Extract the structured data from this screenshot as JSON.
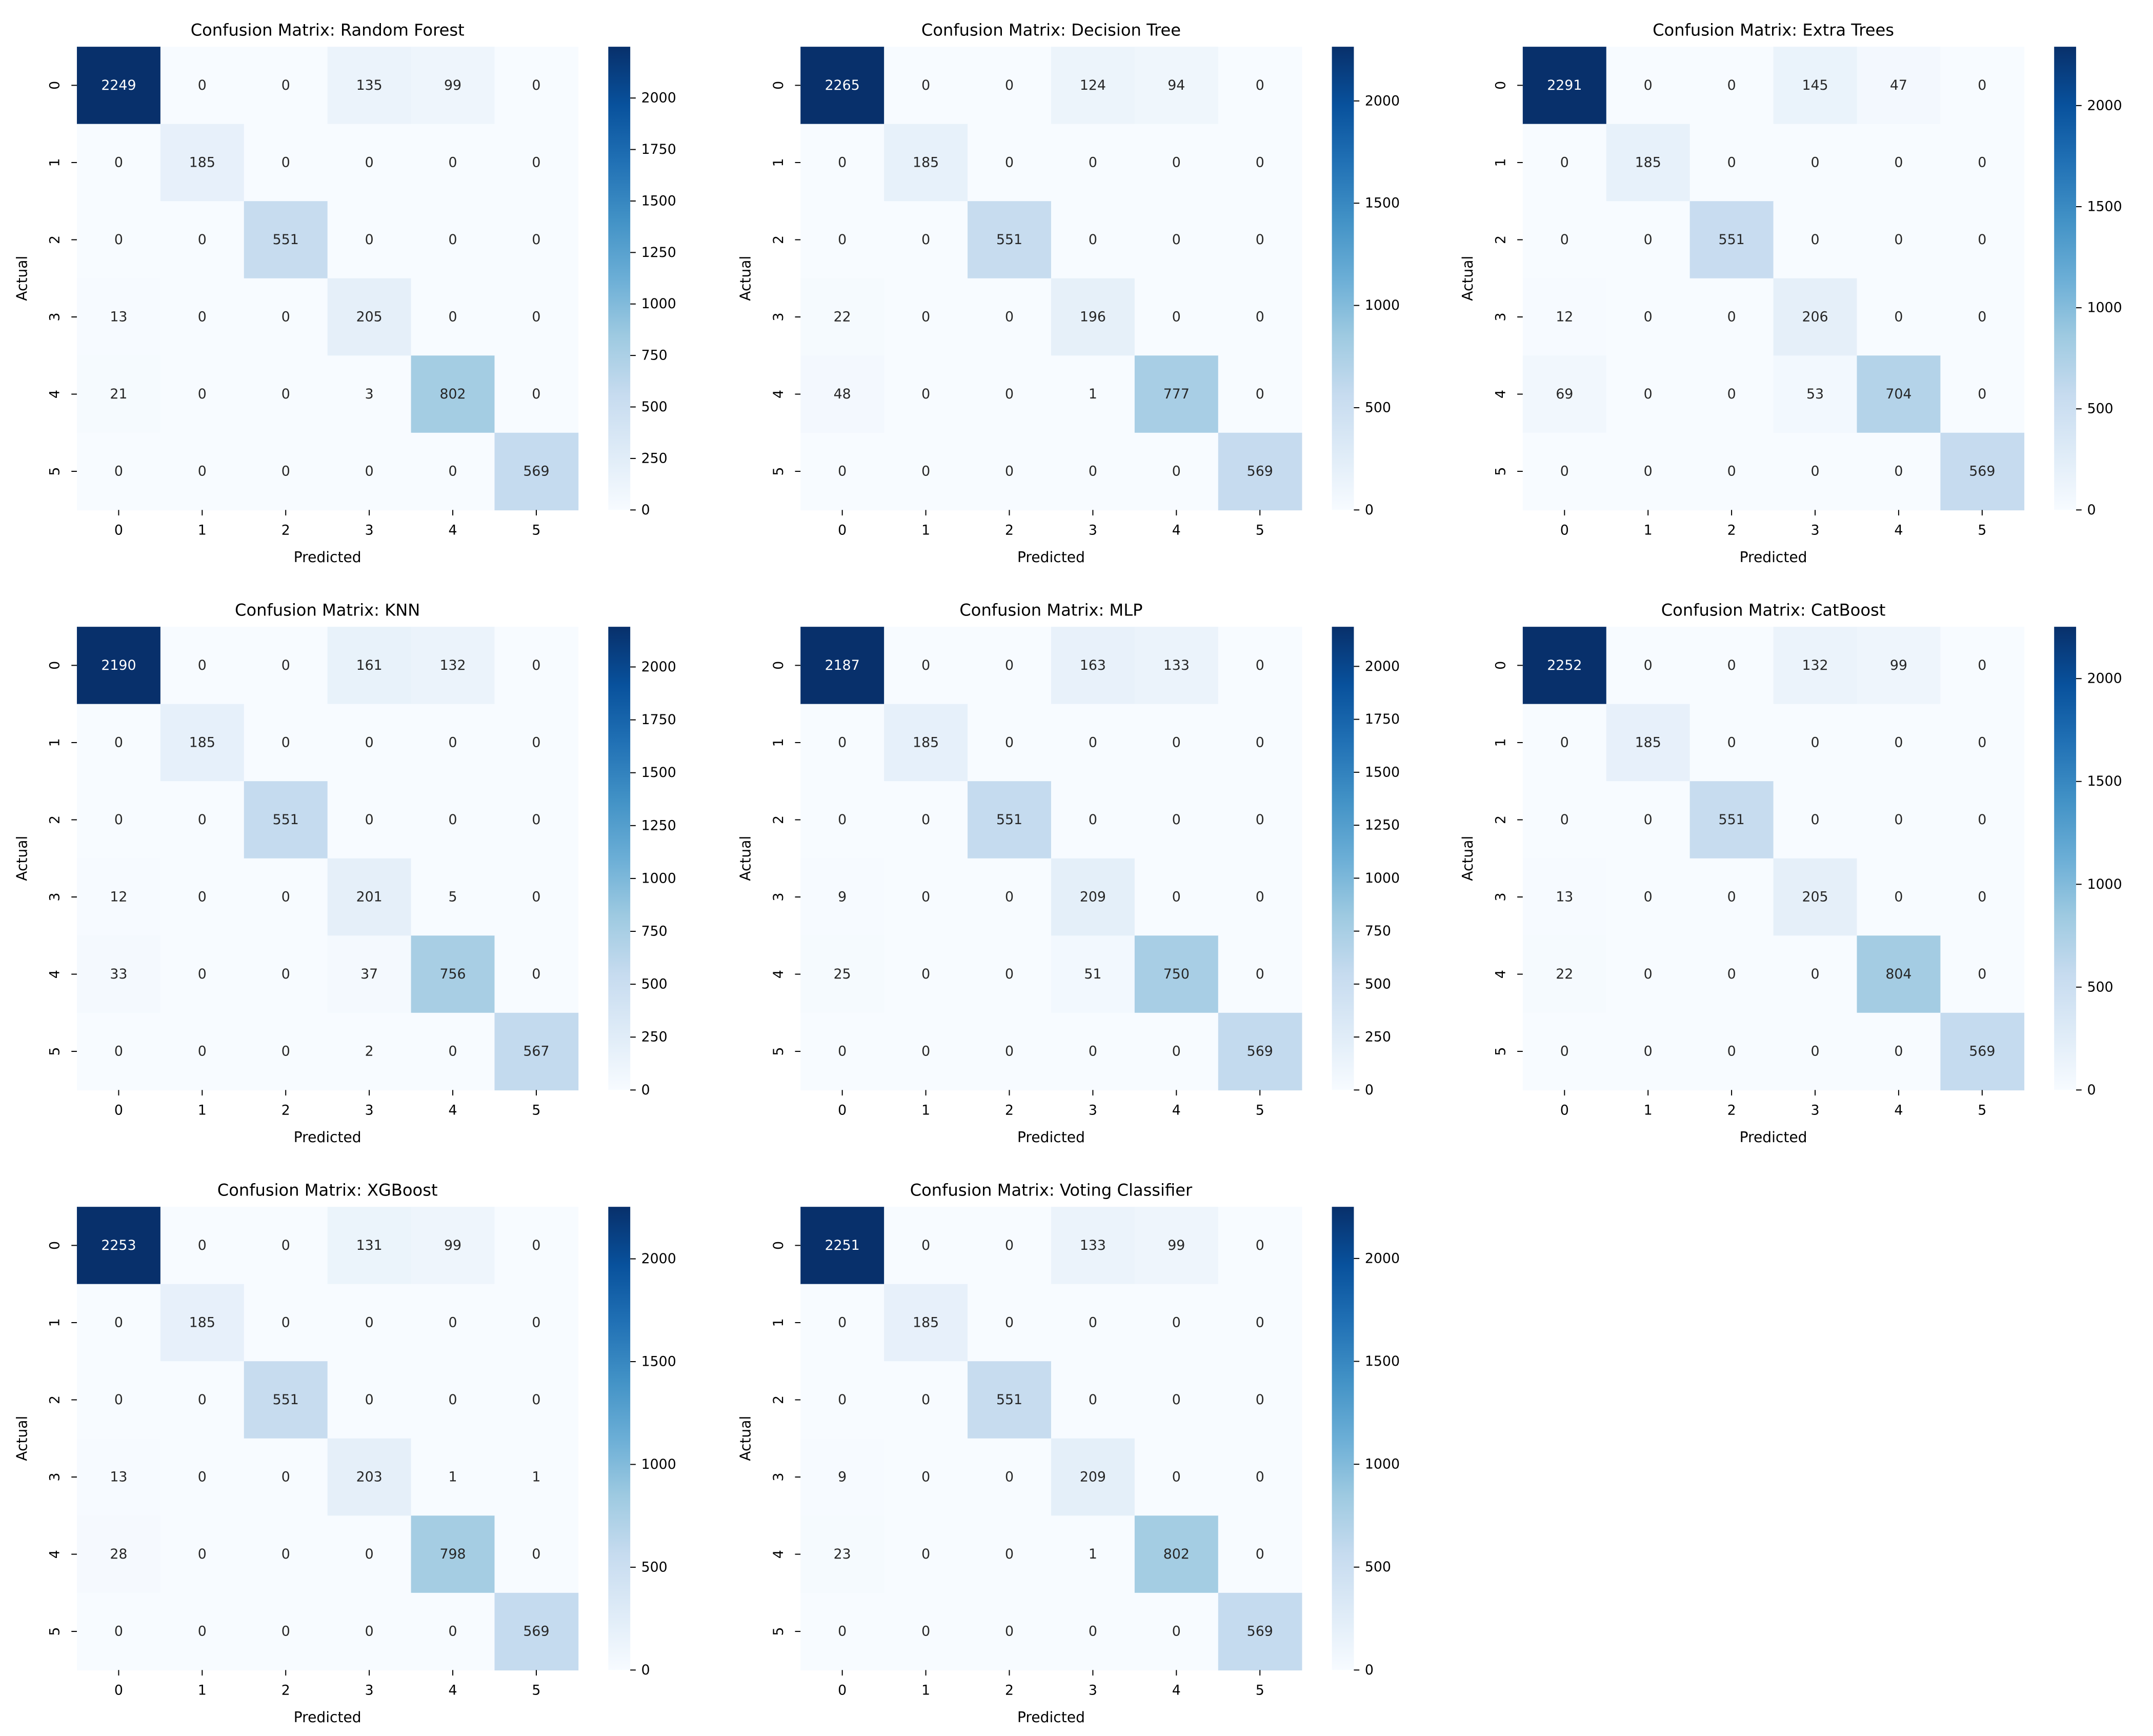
{
  "figure": {
    "background": "#ffffff",
    "colormap": "Blues",
    "annotation_dark_text": "#262626",
    "annotation_light_text": "#ffffff"
  },
  "chart_data": [
    {
      "type": "heatmap",
      "title": "Confusion Matrix: Random Forest",
      "xlabel": "Predicted",
      "ylabel": "Actual",
      "x_ticks": [
        "0",
        "1",
        "2",
        "3",
        "4",
        "5"
      ],
      "y_ticks": [
        "0",
        "1",
        "2",
        "3",
        "4",
        "5"
      ],
      "matrix": [
        [
          2249,
          0,
          0,
          135,
          99,
          0
        ],
        [
          0,
          185,
          0,
          0,
          0,
          0
        ],
        [
          0,
          0,
          551,
          0,
          0,
          0
        ],
        [
          13,
          0,
          0,
          205,
          0,
          0
        ],
        [
          21,
          0,
          0,
          3,
          802,
          0
        ],
        [
          0,
          0,
          0,
          0,
          0,
          569
        ]
      ],
      "colorbar": {
        "range": [
          0,
          2249
        ],
        "ticks": [
          0,
          250,
          500,
          750,
          1000,
          1250,
          1500,
          1750,
          2000
        ]
      }
    },
    {
      "type": "heatmap",
      "title": "Confusion Matrix: Decision Tree",
      "xlabel": "Predicted",
      "ylabel": "Actual",
      "x_ticks": [
        "0",
        "1",
        "2",
        "3",
        "4",
        "5"
      ],
      "y_ticks": [
        "0",
        "1",
        "2",
        "3",
        "4",
        "5"
      ],
      "matrix": [
        [
          2265,
          0,
          0,
          124,
          94,
          0
        ],
        [
          0,
          185,
          0,
          0,
          0,
          0
        ],
        [
          0,
          0,
          551,
          0,
          0,
          0
        ],
        [
          22,
          0,
          0,
          196,
          0,
          0
        ],
        [
          48,
          0,
          0,
          1,
          777,
          0
        ],
        [
          0,
          0,
          0,
          0,
          0,
          569
        ]
      ],
      "colorbar": {
        "range": [
          0,
          2265
        ],
        "ticks": [
          0,
          500,
          1000,
          1500,
          2000
        ]
      }
    },
    {
      "type": "heatmap",
      "title": "Confusion Matrix: Extra Trees",
      "xlabel": "Predicted",
      "ylabel": "Actual",
      "x_ticks": [
        "0",
        "1",
        "2",
        "3",
        "4",
        "5"
      ],
      "y_ticks": [
        "0",
        "1",
        "2",
        "3",
        "4",
        "5"
      ],
      "matrix": [
        [
          2291,
          0,
          0,
          145,
          47,
          0
        ],
        [
          0,
          185,
          0,
          0,
          0,
          0
        ],
        [
          0,
          0,
          551,
          0,
          0,
          0
        ],
        [
          12,
          0,
          0,
          206,
          0,
          0
        ],
        [
          69,
          0,
          0,
          53,
          704,
          0
        ],
        [
          0,
          0,
          0,
          0,
          0,
          569
        ]
      ],
      "colorbar": {
        "range": [
          0,
          2291
        ],
        "ticks": [
          0,
          500,
          1000,
          1500,
          2000
        ]
      }
    },
    {
      "type": "heatmap",
      "title": "Confusion Matrix: KNN",
      "xlabel": "Predicted",
      "ylabel": "Actual",
      "x_ticks": [
        "0",
        "1",
        "2",
        "3",
        "4",
        "5"
      ],
      "y_ticks": [
        "0",
        "1",
        "2",
        "3",
        "4",
        "5"
      ],
      "matrix": [
        [
          2190,
          0,
          0,
          161,
          132,
          0
        ],
        [
          0,
          185,
          0,
          0,
          0,
          0
        ],
        [
          0,
          0,
          551,
          0,
          0,
          0
        ],
        [
          12,
          0,
          0,
          201,
          5,
          0
        ],
        [
          33,
          0,
          0,
          37,
          756,
          0
        ],
        [
          0,
          0,
          0,
          2,
          0,
          567
        ]
      ],
      "colorbar": {
        "range": [
          0,
          2190
        ],
        "ticks": [
          0,
          250,
          500,
          750,
          1000,
          1250,
          1500,
          1750,
          2000
        ]
      }
    },
    {
      "type": "heatmap",
      "title": "Confusion Matrix: MLP",
      "xlabel": "Predicted",
      "ylabel": "Actual",
      "x_ticks": [
        "0",
        "1",
        "2",
        "3",
        "4",
        "5"
      ],
      "y_ticks": [
        "0",
        "1",
        "2",
        "3",
        "4",
        "5"
      ],
      "matrix": [
        [
          2187,
          0,
          0,
          163,
          133,
          0
        ],
        [
          0,
          185,
          0,
          0,
          0,
          0
        ],
        [
          0,
          0,
          551,
          0,
          0,
          0
        ],
        [
          9,
          0,
          0,
          209,
          0,
          0
        ],
        [
          25,
          0,
          0,
          51,
          750,
          0
        ],
        [
          0,
          0,
          0,
          0,
          0,
          569
        ]
      ],
      "colorbar": {
        "range": [
          0,
          2187
        ],
        "ticks": [
          0,
          250,
          500,
          750,
          1000,
          1250,
          1500,
          1750,
          2000
        ]
      }
    },
    {
      "type": "heatmap",
      "title": "Confusion Matrix: CatBoost",
      "xlabel": "Predicted",
      "ylabel": "Actual",
      "x_ticks": [
        "0",
        "1",
        "2",
        "3",
        "4",
        "5"
      ],
      "y_ticks": [
        "0",
        "1",
        "2",
        "3",
        "4",
        "5"
      ],
      "matrix": [
        [
          2252,
          0,
          0,
          132,
          99,
          0
        ],
        [
          0,
          185,
          0,
          0,
          0,
          0
        ],
        [
          0,
          0,
          551,
          0,
          0,
          0
        ],
        [
          13,
          0,
          0,
          205,
          0,
          0
        ],
        [
          22,
          0,
          0,
          0,
          804,
          0
        ],
        [
          0,
          0,
          0,
          0,
          0,
          569
        ]
      ],
      "colorbar": {
        "range": [
          0,
          2252
        ],
        "ticks": [
          0,
          500,
          1000,
          1500,
          2000
        ]
      }
    },
    {
      "type": "heatmap",
      "title": "Confusion Matrix: XGBoost",
      "xlabel": "Predicted",
      "ylabel": "Actual",
      "x_ticks": [
        "0",
        "1",
        "2",
        "3",
        "4",
        "5"
      ],
      "y_ticks": [
        "0",
        "1",
        "2",
        "3",
        "4",
        "5"
      ],
      "matrix": [
        [
          2253,
          0,
          0,
          131,
          99,
          0
        ],
        [
          0,
          185,
          0,
          0,
          0,
          0
        ],
        [
          0,
          0,
          551,
          0,
          0,
          0
        ],
        [
          13,
          0,
          0,
          203,
          1,
          1
        ],
        [
          28,
          0,
          0,
          0,
          798,
          0
        ],
        [
          0,
          0,
          0,
          0,
          0,
          569
        ]
      ],
      "colorbar": {
        "range": [
          0,
          2253
        ],
        "ticks": [
          0,
          500,
          1000,
          1500,
          2000
        ]
      }
    },
    {
      "type": "heatmap",
      "title": "Confusion Matrix: Voting Classifier",
      "xlabel": "Predicted",
      "ylabel": "Actual",
      "x_ticks": [
        "0",
        "1",
        "2",
        "3",
        "4",
        "5"
      ],
      "y_ticks": [
        "0",
        "1",
        "2",
        "3",
        "4",
        "5"
      ],
      "matrix": [
        [
          2251,
          0,
          0,
          133,
          99,
          0
        ],
        [
          0,
          185,
          0,
          0,
          0,
          0
        ],
        [
          0,
          0,
          551,
          0,
          0,
          0
        ],
        [
          9,
          0,
          0,
          209,
          0,
          0
        ],
        [
          23,
          0,
          0,
          1,
          802,
          0
        ],
        [
          0,
          0,
          0,
          0,
          0,
          569
        ]
      ],
      "colorbar": {
        "range": [
          0,
          2251
        ],
        "ticks": [
          0,
          500,
          1000,
          1500,
          2000
        ]
      }
    }
  ]
}
